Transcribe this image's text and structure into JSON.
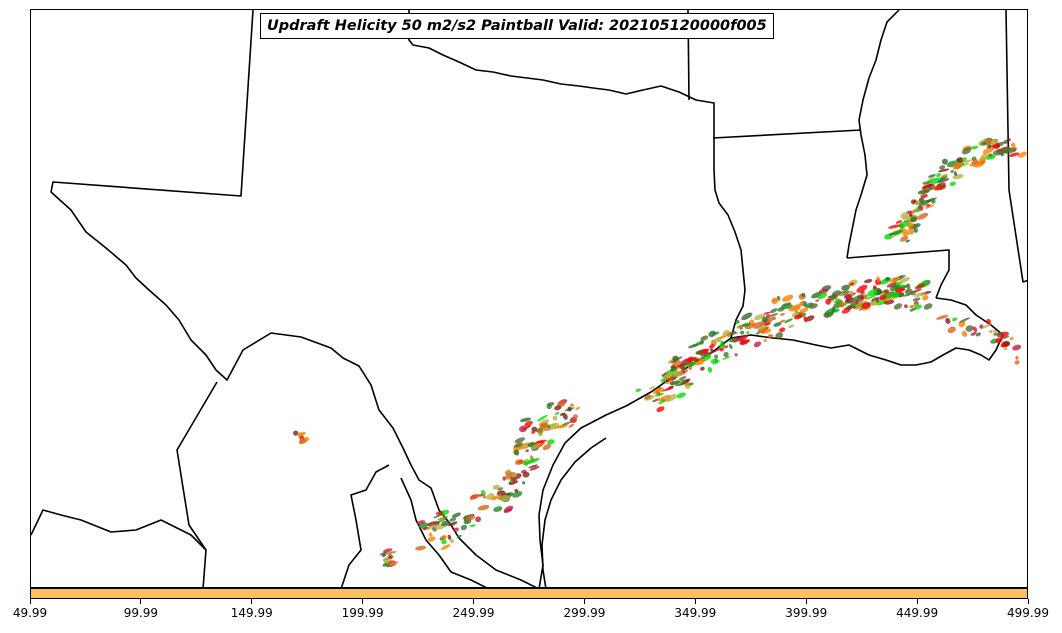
{
  "title": "Updraft Helicity 50 m2/s2 Paintball Valid: 202105120000f005",
  "map": {
    "background_color": "#ffffff",
    "boundary_color": "#000000"
  },
  "paintball": {
    "member_colors": [
      "#ff0000",
      "#ff7f00",
      "#228b22",
      "#00dd00",
      "#8b1a1a",
      "#b5b540",
      "#2e6b2e",
      "#d2691e",
      "#c41e3a",
      "#556b2f"
    ]
  },
  "colorbar": {
    "color": "#ffc060",
    "ticks": [
      "49.99",
      "99.99",
      "149.99",
      "199.99",
      "249.99",
      "299.99",
      "349.99",
      "399.99",
      "449.99",
      "499.99"
    ]
  }
}
